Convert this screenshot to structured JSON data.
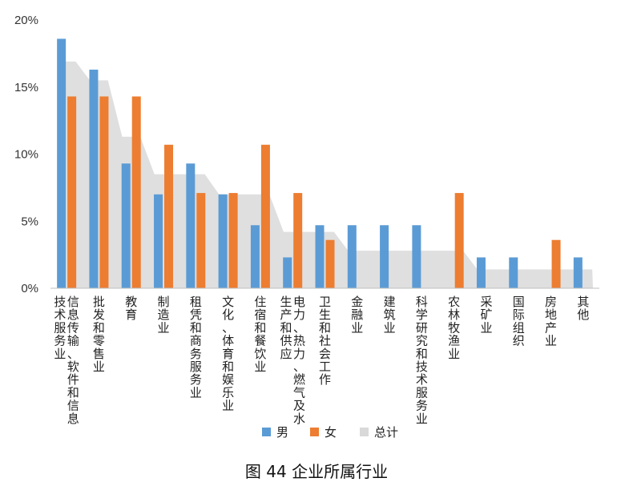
{
  "caption": "图 44 企业所属行业",
  "chart_data": {
    "type": "bar",
    "title": "",
    "xlabel": "",
    "ylabel": "",
    "ylim": [
      0,
      20
    ],
    "yticks": [
      0,
      5,
      10,
      15,
      20
    ],
    "ytick_labels": [
      "0%",
      "5%",
      "10%",
      "15%",
      "20%"
    ],
    "grid": false,
    "legend_position": "bottom",
    "categories": [
      "信息传输、软件和信息技术服务业",
      "批发和零售业",
      "教育",
      "制造业",
      "租凭和商务服务业",
      "文化、体育和娱乐业",
      "住宿和餐饮业",
      "电力、热力、燃气及水生产和供应",
      "卫生和社会工作",
      "金融业",
      "建筑业",
      "科学研究和技术服务业",
      "农林牧渔业",
      "采矿业",
      "国际组织",
      "房地产业",
      "其他"
    ],
    "series": [
      {
        "name": "男",
        "type": "bar",
        "color": "#5b9bd5",
        "values": [
          18.6,
          16.3,
          9.3,
          7.0,
          9.3,
          7.0,
          4.7,
          2.3,
          4.7,
          4.7,
          4.7,
          4.7,
          0,
          2.3,
          2.3,
          0,
          2.3
        ]
      },
      {
        "name": "女",
        "type": "bar",
        "color": "#ed7d31",
        "values": [
          14.3,
          14.3,
          14.3,
          10.7,
          7.1,
          7.1,
          10.7,
          7.1,
          3.6,
          0,
          0,
          0,
          7.1,
          0,
          0,
          3.6,
          0
        ]
      },
      {
        "name": "总计",
        "type": "area",
        "color": "#d9d9d9",
        "values": [
          16.9,
          15.5,
          11.3,
          8.5,
          8.5,
          7.0,
          7.0,
          4.2,
          4.2,
          2.8,
          2.8,
          2.8,
          2.8,
          1.4,
          1.4,
          1.4,
          1.4
        ]
      }
    ]
  }
}
